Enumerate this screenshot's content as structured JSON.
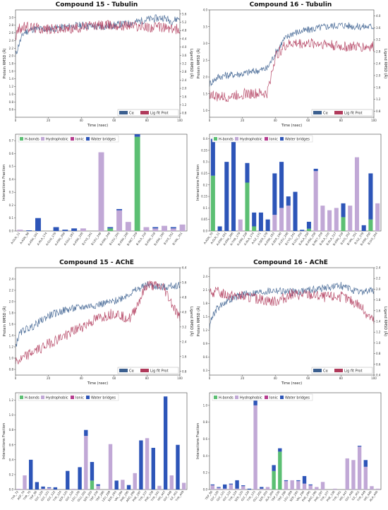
{
  "colors": {
    "protein": "#3b5f8f",
    "ligand": "#b03a5b",
    "hbonds": "#5cbf73",
    "hydrophobic": "#c1a8d6",
    "ionic": "#b63c8f",
    "water": "#2d55b8"
  },
  "rmsd_legend": {
    "ca": "Cα",
    "lig": "Lig fit Prot"
  },
  "interaction_legend": {
    "hbonds": "H-bonds",
    "hydrophobic": "Hydrophobic",
    "ionic": "Ionic",
    "water": "Water bridges"
  },
  "chart_data": [
    {
      "id": "rmsd15t",
      "type": "line",
      "title": "Compound 15 - Tubulin",
      "xlabel": "Time (nsec)",
      "ylabel": "Protein RMSD (Å)",
      "y2label": "Ligand RMSD (Å)",
      "xlim": [
        0,
        100
      ],
      "ylim": [
        0.4,
        3.2
      ],
      "y2lim": [
        0.6,
        5.8
      ],
      "xticks": [
        0,
        20,
        40,
        60,
        80,
        100
      ],
      "yticks": [
        0.6,
        0.8,
        1.0,
        1.2,
        1.4,
        1.6,
        1.8,
        2.0,
        2.2,
        2.4,
        2.6,
        2.8,
        3.0
      ],
      "y2ticks": [
        0.8,
        1.2,
        1.6,
        2.0,
        2.4,
        2.8,
        3.2,
        3.6,
        4.0,
        4.4,
        4.8,
        5.2,
        5.6
      ],
      "series": [
        {
          "name": "Cα",
          "x": [
            0,
            2,
            5,
            10,
            20,
            30,
            40,
            50,
            60,
            70,
            80,
            90,
            95,
            100
          ],
          "y": [
            2.0,
            2.3,
            2.6,
            2.7,
            2.7,
            2.75,
            2.8,
            2.75,
            2.8,
            2.85,
            2.95,
            3.0,
            2.9,
            3.0
          ]
        },
        {
          "name": "Lig fit Prot",
          "x": [
            0,
            2,
            5,
            10,
            20,
            30,
            40,
            50,
            60,
            70,
            80,
            90,
            95,
            100
          ],
          "y": [
            2.5,
            2.7,
            2.75,
            2.75,
            2.7,
            2.7,
            2.75,
            2.8,
            2.8,
            2.8,
            2.75,
            2.75,
            2.7,
            2.7
          ]
        }
      ]
    },
    {
      "id": "rmsd16t",
      "type": "line",
      "title": "Compound 16 - Tubulin",
      "xlabel": "Time (nsec)",
      "ylabel": "Protein RMSD (Å)",
      "y2label": "Ligand RMSD (Å)",
      "xlim": [
        0,
        100
      ],
      "ylim": [
        0.8,
        4.0
      ],
      "y2lim": [
        0.6,
        4.2
      ],
      "xticks": [
        0,
        20,
        40,
        60,
        80,
        100
      ],
      "yticks": [
        1.0,
        1.5,
        2.0,
        2.5,
        3.0,
        3.5,
        4.0
      ],
      "y2ticks": [
        0.8,
        1.2,
        1.6,
        2.0,
        2.4,
        2.8,
        3.2,
        3.6,
        4.0
      ],
      "series": [
        {
          "name": "Cα",
          "x": [
            0,
            5,
            10,
            20,
            30,
            35,
            40,
            45,
            50,
            60,
            70,
            80,
            90,
            100
          ],
          "y": [
            1.8,
            2.0,
            2.05,
            2.1,
            2.2,
            2.25,
            2.7,
            3.1,
            3.3,
            3.4,
            3.5,
            3.55,
            3.5,
            3.5
          ]
        },
        {
          "name": "Lig fit Prot",
          "x": [
            0,
            5,
            10,
            20,
            30,
            35,
            40,
            45,
            50,
            60,
            70,
            80,
            90,
            100
          ],
          "y": [
            1.5,
            1.4,
            1.4,
            1.5,
            1.5,
            1.5,
            2.6,
            2.9,
            3.0,
            3.0,
            3.0,
            2.9,
            2.9,
            2.9
          ]
        }
      ]
    },
    {
      "id": "int15t",
      "type": "bar",
      "ylabel": "Interactions Fraction",
      "ylim": [
        0,
        0.75
      ],
      "yticks": [
        0.0,
        0.1,
        0.2,
        0.3,
        0.4,
        0.5,
        0.6,
        0.7
      ],
      "categories": [
        "A:GLN_11",
        "A:ASN_98",
        "A:ASN_101",
        "A:ALA_174",
        "A:GLN_176",
        "A:ASN_206",
        "A:GLU_183",
        "A:ASN_228",
        "B:CYS_241",
        "B:LEU_248",
        "B:ASN_249",
        "B:LEU_255",
        "B:ASN_258",
        "B:MET_259",
        "B:ALA_316",
        "B:ASN_318",
        "B:ASN_350",
        "B:LYS_352",
        "B:VAL_351"
      ],
      "series": [
        {
          "name": "H-bonds",
          "values": [
            0,
            0,
            0,
            0,
            0,
            0,
            0,
            0,
            0,
            0,
            0.02,
            0,
            0,
            0.73,
            0,
            0,
            0,
            0,
            0
          ]
        },
        {
          "name": "Hydrophobic",
          "values": [
            0.01,
            0,
            0,
            0,
            0,
            0,
            0,
            0.02,
            0,
            0.61,
            0,
            0.16,
            0.07,
            0,
            0.03,
            0.02,
            0.04,
            0.02,
            0.05
          ]
        },
        {
          "name": "Ionic",
          "values": [
            0,
            0,
            0,
            0,
            0,
            0,
            0,
            0,
            0,
            0,
            0,
            0,
            0,
            0,
            0,
            0,
            0,
            0,
            0
          ]
        },
        {
          "name": "Water bridges",
          "values": [
            0,
            0.005,
            0.1,
            0,
            0.03,
            0.01,
            0.02,
            0,
            0,
            0,
            0.01,
            0.01,
            0,
            0.02,
            0,
            0.01,
            0,
            0.01,
            0
          ]
        }
      ]
    },
    {
      "id": "int16t",
      "type": "bar",
      "ylabel": "Interactions Fraction",
      "ylim": [
        0,
        0.42
      ],
      "yticks": [
        0.0,
        0.05,
        0.1,
        0.15,
        0.2,
        0.25,
        0.3,
        0.35,
        0.4
      ],
      "categories": [
        "A:ASN_70",
        "A:GLN_11",
        "A:ASN_101",
        "A:ASN_206",
        "A:THR_179",
        "A:ASN_228",
        "A:ALA_174",
        "A:ILE_171",
        "A:SER_178",
        "A:ASN_183",
        "A:SER_140",
        "A:LEU_248",
        "B:CYS_241",
        "B:LEU_255",
        "B:ALA_250",
        "B:ASN_258",
        "B:MET_259",
        "B:ALA_316",
        "B:ALA_317",
        "B:ASN_318",
        "B:LYS_352",
        "B:VAL_351",
        "B:ILE_378",
        "B:ASN_350",
        "B:LYS_254"
      ],
      "series": [
        {
          "name": "H-bonds",
          "values": [
            0.24,
            0,
            0,
            0,
            0,
            0.21,
            0.02,
            0,
            0,
            0,
            0,
            0,
            0,
            0,
            0.01,
            0,
            0,
            0,
            0,
            0.06,
            0,
            0,
            0,
            0.05,
            0
          ]
        },
        {
          "name": "Hydrophobic",
          "values": [
            0,
            0,
            0,
            0,
            0.05,
            0,
            0,
            0,
            0,
            0.07,
            0.1,
            0.11,
            0,
            0,
            0,
            0.26,
            0.11,
            0.09,
            0.1,
            0,
            0.11,
            0.32,
            0,
            0,
            0.12
          ]
        },
        {
          "name": "Ionic",
          "values": [
            0,
            0,
            0,
            0,
            0,
            0,
            0,
            0,
            0,
            0,
            0,
            0,
            0,
            0,
            0,
            0,
            0,
            0,
            0,
            0,
            0,
            0,
            0,
            0,
            0
          ]
        },
        {
          "name": "Water bridges",
          "values": [
            0.16,
            0.02,
            0.3,
            0.4,
            0,
            0.085,
            0.06,
            0.08,
            0.05,
            0.18,
            0.2,
            0.04,
            0.17,
            0.005,
            0.03,
            0.01,
            0,
            0,
            0,
            0.06,
            0,
            0,
            0.025,
            0.2,
            0
          ]
        }
      ]
    },
    {
      "id": "rmsd15a",
      "type": "line",
      "title": "Compound 15 - AChE",
      "xlabel": "Time (nsec)",
      "ylabel": "Protein RMSD (Å)",
      "y2label": "Ligand RMSD (Å)",
      "xlim": [
        0,
        100
      ],
      "ylim": [
        0.7,
        2.6
      ],
      "y2lim": [
        0.6,
        6.4
      ],
      "xticks": [
        0,
        20,
        40,
        60,
        80,
        100
      ],
      "yticks": [
        0.8,
        1.0,
        1.2,
        1.4,
        1.6,
        1.8,
        2.0,
        2.2,
        2.4
      ],
      "y2ticks": [
        0.8,
        1.6,
        2.4,
        3.2,
        4.0,
        4.8,
        5.6,
        6.4
      ],
      "series": [
        {
          "name": "Cα",
          "x": [
            0,
            2,
            5,
            10,
            20,
            30,
            40,
            50,
            60,
            70,
            80,
            90,
            100
          ],
          "y": [
            1.2,
            1.4,
            1.5,
            1.55,
            1.75,
            1.85,
            1.9,
            1.95,
            2.0,
            2.15,
            2.3,
            2.25,
            2.3
          ]
        },
        {
          "name": "Lig fit Prot",
          "x": [
            0,
            2,
            5,
            10,
            20,
            30,
            40,
            50,
            60,
            70,
            80,
            90,
            100
          ],
          "y": [
            0.95,
            0.95,
            1.0,
            1.1,
            1.25,
            1.4,
            1.55,
            1.7,
            1.8,
            1.7,
            2.3,
            2.25,
            1.7
          ]
        }
      ]
    },
    {
      "id": "rmsd16a",
      "type": "line",
      "title": "Compound 16 - AChE",
      "xlabel": "Time (nsec)",
      "ylabel": "Protein RMSD (Å)",
      "y2label": "Ligand RMSD (Å)",
      "xlim": [
        0,
        100
      ],
      "ylim": [
        0.2,
        2.6
      ],
      "y2lim": [
        0.4,
        2.4
      ],
      "xticks": [
        0,
        20,
        40,
        60,
        80,
        100
      ],
      "yticks": [
        0.3,
        0.6,
        0.9,
        1.2,
        1.5,
        1.8,
        2.1,
        2.4
      ],
      "y2ticks": [
        0.4,
        0.6,
        0.8,
        1.0,
        1.2,
        1.4,
        1.6,
        1.8,
        2.0,
        2.2,
        2.4
      ],
      "series": [
        {
          "name": "Cα",
          "x": [
            0,
            2,
            5,
            10,
            20,
            30,
            40,
            50,
            60,
            70,
            80,
            90,
            100
          ],
          "y": [
            1.3,
            1.55,
            1.7,
            1.85,
            2.0,
            2.05,
            2.1,
            2.05,
            2.1,
            2.15,
            2.2,
            2.05,
            2.1
          ]
        },
        {
          "name": "Lig fit Prot",
          "x": [
            0,
            2,
            5,
            10,
            20,
            30,
            40,
            50,
            60,
            70,
            80,
            90,
            100
          ],
          "y": [
            2.0,
            2.05,
            2.05,
            2.0,
            1.95,
            1.9,
            1.85,
            2.0,
            2.0,
            1.95,
            1.95,
            1.8,
            1.4
          ]
        }
      ]
    },
    {
      "id": "int15a",
      "type": "bar",
      "ylabel": "Interactions Fraction",
      "ylim": [
        0,
        1.3
      ],
      "yticks": [
        0.0,
        0.2,
        0.4,
        0.6,
        0.8,
        1.0,
        1.2
      ],
      "categories": [
        "TYR_72",
        "ASP_74",
        "THR_75",
        "TRP_86",
        "GLY_120",
        "GLY_121",
        "GLY_122",
        "TYR_124",
        "SER_125",
        "GLY_126",
        "LEU_130",
        "GLU_202",
        "SER_203",
        "TRP_236",
        "TRP_286",
        "LEU_289",
        "SER_293",
        "VAL_294",
        "PHE_295",
        "ARG_296",
        "PHE_297",
        "TYR_337",
        "PHE_338",
        "TYR_341",
        "HIS_447",
        "GLY_448",
        "ILE_451",
        "TYR_449"
      ],
      "series": [
        {
          "name": "H-bonds",
          "values": [
            0,
            0,
            0,
            0,
            0,
            0,
            0,
            0,
            0,
            0,
            0,
            0,
            0.12,
            0,
            0,
            0,
            0,
            0,
            0,
            0,
            0,
            0,
            0,
            0,
            0,
            0,
            0,
            0
          ]
        },
        {
          "name": "Hydrophobic",
          "values": [
            0.01,
            0.19,
            0,
            0,
            0.01,
            0.02,
            0,
            0,
            0,
            0.01,
            0,
            0.72,
            0,
            0.05,
            0,
            0.61,
            0,
            0.13,
            0,
            0.22,
            0,
            0.69,
            0,
            0.05,
            0,
            0.19,
            0,
            0.09
          ]
        },
        {
          "name": "Ionic",
          "values": [
            0,
            0,
            0,
            0,
            0,
            0,
            0,
            0,
            0,
            0,
            0,
            0,
            0,
            0,
            0,
            0,
            0,
            0,
            0,
            0,
            0,
            0,
            0,
            0,
            0,
            0,
            0,
            0
          ]
        },
        {
          "name": "Water bridges",
          "values": [
            0,
            0,
            0.4,
            0.1,
            0.03,
            0.01,
            0.03,
            0,
            0.25,
            0,
            0.3,
            0.08,
            0.25,
            0.02,
            0,
            0,
            0.12,
            0,
            0.06,
            0,
            0.66,
            0,
            0.56,
            0,
            1.25,
            0,
            0.6,
            0
          ]
        }
      ]
    },
    {
      "id": "int16a",
      "type": "bar",
      "ylabel": "Interactions Fraction",
      "ylim": [
        0,
        1.15
      ],
      "yticks": [
        0.0,
        0.2,
        0.4,
        0.6,
        0.8,
        1.0
      ],
      "categories": [
        "TRP_86",
        "GLY_120",
        "GLY_121",
        "GLY_122",
        "TYR_124",
        "SER_125",
        "GLY_126",
        "TYR_133",
        "GLU_202",
        "SER_203",
        "ALA_204",
        "TRP_236",
        "TRP_286",
        "LEU_289",
        "SER_293",
        "VAL_294",
        "PHE_295",
        "ARG_296",
        "PHE_297",
        "TYR_337",
        "PHE_338",
        "TYR_341",
        "HIS_447",
        "GLY_448",
        "ILE_451",
        "TYR_449",
        "HIS_440",
        "ALA_440"
      ],
      "series": [
        {
          "name": "H-bonds",
          "values": [
            0,
            0,
            0,
            0,
            0,
            0,
            0,
            0,
            0,
            0,
            0.22,
            0.45,
            0,
            0,
            0,
            0,
            0,
            0,
            0,
            0,
            0,
            0,
            0,
            0,
            0,
            0,
            0,
            0
          ]
        },
        {
          "name": "Hydrophobic",
          "values": [
            0.05,
            0.02,
            0.01,
            0.06,
            0.01,
            0.04,
            0,
            1.0,
            0.01,
            0.03,
            0,
            0,
            0.1,
            0.11,
            0.1,
            0.07,
            0.05,
            0.03,
            0.09,
            0,
            0.01,
            0,
            0.37,
            0.35,
            0.51,
            0.27,
            0.04,
            0.01
          ]
        },
        {
          "name": "Ionic",
          "values": [
            0,
            0,
            0,
            0,
            0,
            0,
            0,
            0,
            0,
            0,
            0,
            0,
            0,
            0,
            0,
            0,
            0,
            0,
            0,
            0,
            0,
            0,
            0,
            0,
            0,
            0,
            0,
            0
          ]
        },
        {
          "name": "Water bridges",
          "values": [
            0.01,
            0.01,
            0.05,
            0.01,
            0.1,
            0.01,
            0.01,
            0.13,
            0.02,
            0,
            0.07,
            0.04,
            0.01,
            0,
            0.01,
            0.09,
            0.01,
            0,
            0,
            0,
            0,
            0,
            0,
            0,
            0.01,
            0.08,
            0,
            0
          ]
        }
      ]
    }
  ]
}
